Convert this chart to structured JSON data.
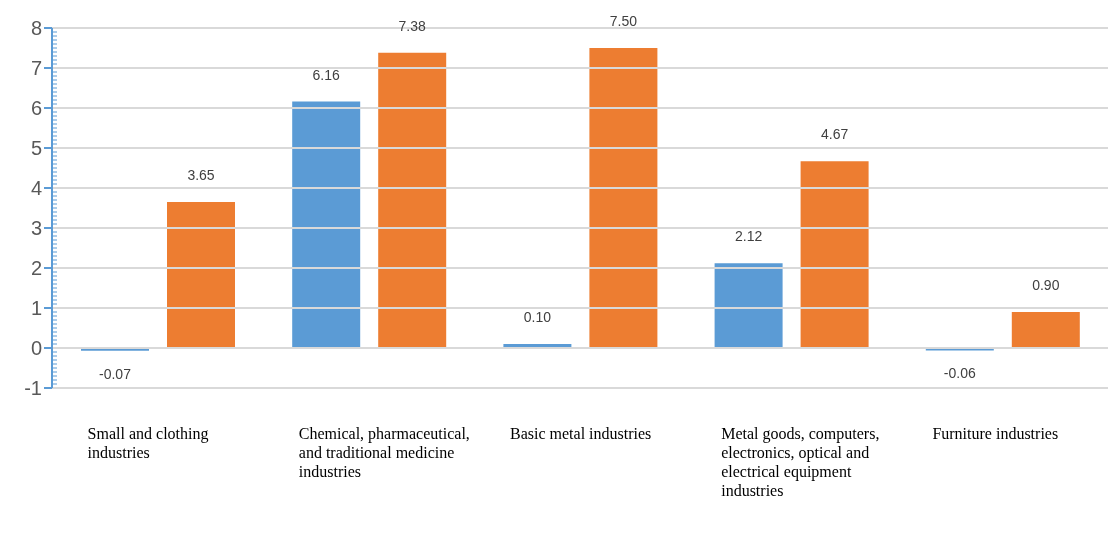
{
  "chart_data": {
    "type": "bar",
    "categories": [
      "Small and clothing industries",
      "Chemical, pharmaceutical, and traditional medicine industries",
      "Basic metal industries",
      "Metal goods, computers, electronics, optical and electrical equipment industries",
      "Furniture industries"
    ],
    "series": [
      {
        "color": "#5b9bd5",
        "values": [
          -0.07,
          6.16,
          0.1,
          2.12,
          -0.06
        ],
        "value_labels": [
          "-0.07",
          "6.16",
          "0.10",
          "2.12",
          "-0.06"
        ]
      },
      {
        "color": "#ed7d31",
        "values": [
          3.65,
          7.38,
          7.5,
          4.67,
          0.9
        ],
        "value_labels": [
          "3.65",
          "7.38",
          "7.50",
          "4.67",
          "0.90"
        ]
      }
    ],
    "ylim": [
      -1,
      8
    ],
    "yticks": [
      -1,
      0,
      1,
      2,
      3,
      4,
      5,
      6,
      7,
      8
    ],
    "grid": "y"
  }
}
